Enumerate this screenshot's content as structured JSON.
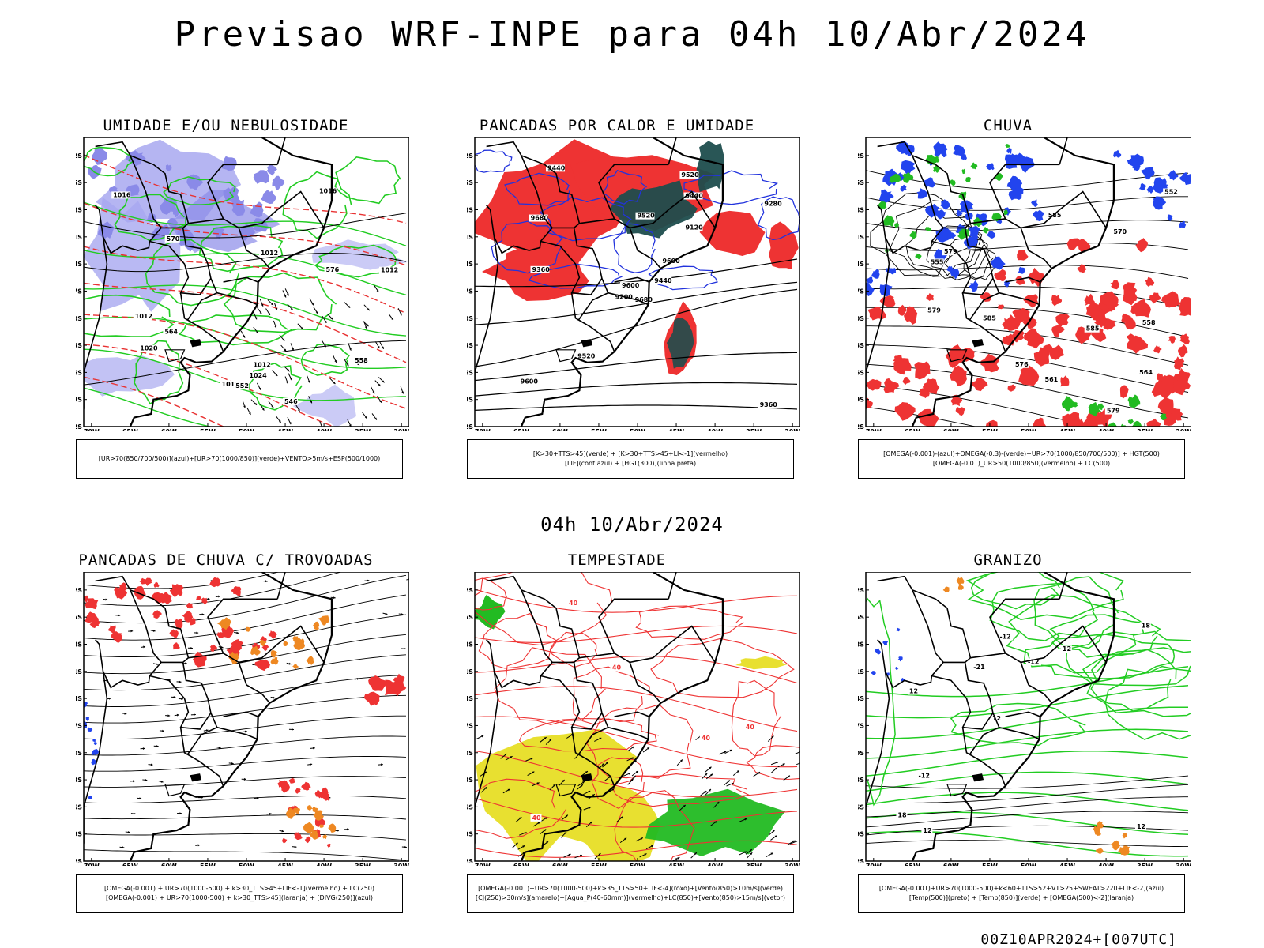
{
  "title": "Previsao WRF-INPE  para 04h 10/Abr/2024",
  "mid_title": "04h 10/Abr/2024",
  "footer": "00Z10APR2024+[007UTC]",
  "lat_labels": [
    "12S",
    "15S",
    "18S",
    "21S",
    "24S",
    "27S",
    "30S",
    "33S",
    "36S",
    "39S",
    "42S"
  ],
  "lon_labels": [
    "70W",
    "65W",
    "60W",
    "55W",
    "50W",
    "45W",
    "40W",
    "35W",
    "30W"
  ],
  "panels": [
    {
      "title": "UMIDADE E/OU NEBULOSIDADE",
      "legend": [
        "[UR>70(850/700/500)](azul)+[UR>70(1000/850)](verde)+VENTO>5m/s+ESP(500/1000)"
      ],
      "contour_labels": [
        "1012",
        "1012",
        "1012",
        "1016",
        "1012",
        "1020",
        "1024",
        "1012",
        "576",
        "570",
        "564",
        "558",
        "552",
        "546",
        "1016"
      ],
      "colors": {
        "fill": "#a8a8f0",
        "fill2": "#8a8ae8",
        "lines": "#22cc22",
        "dashed": "#e83232"
      }
    },
    {
      "title": "PANCADAS POR CALOR E UMIDADE",
      "legend": [
        "[K>30+TTS>45](verde) + [K>30+TTS>45+LI<-1](vermelho)",
        "[LIF](cont.azul) + [HGT(300)](linha preta)"
      ],
      "contour_labels": [
        "9680",
        "9680",
        "9600",
        "9600",
        "9600",
        "9520",
        "9520",
        "9520",
        "9440",
        "9440",
        "9440",
        "9360",
        "9360",
        "9280",
        "9200",
        "9120"
      ],
      "colors": {
        "red": "#ee3333",
        "green": "#1e4d4d",
        "blue": "#2233dd"
      }
    },
    {
      "title": "CHUVA",
      "legend": [
        "[OMEGA(-0.001)-(azul)+OMEGA(-0.3)-(verde)+UR>70(1000/850/700/500)] + HGT(500)",
        "[OMEGA(-0.01)_UR>50(1000/850)(vermelho) + LC(500)"
      ],
      "contour_labels": [
        "585",
        "585",
        "585",
        "579",
        "579",
        "576",
        "570",
        "564",
        "561",
        "558",
        "555",
        "552",
        "579"
      ],
      "colors": {
        "red": "#ee3333",
        "blue": "#2244ee",
        "green": "#22bb22"
      }
    },
    {
      "title": "PANCADAS DE CHUVA C/ TROVOADAS",
      "legend": [
        "[OMEGA(-0.001) + UR>70(1000-500) + k>30_TTS>45+LIF<-1](vermelho) + LC(250)",
        "[OMEGA(-0.001) + UR>70(1000-500) + k>30_TTS>45](laranja) + [DIVG(250)](azul)"
      ],
      "contour_labels": [],
      "colors": {
        "red": "#ee3333",
        "orange": "#ee8822",
        "blue": "#2244ee"
      }
    },
    {
      "title": "TEMPESTADE",
      "legend": [
        "[OMEGA(-0.001)+UR>70(1000-500)+k>35_TTS>50+LIF<-4](roxo)+[Vento(850)>10m/s](verde)",
        "[CJ(250)>30m/s](amarelo)+[Agua_P(40-60mm)](vermelho)+LC(850)+[Vento(850)>15m/s](vetor)"
      ],
      "contour_labels": [
        "40",
        "40",
        "40",
        "40",
        "40"
      ],
      "colors": {
        "yellow": "#e8e030",
        "green": "#22bb22",
        "red": "#ee3333"
      }
    },
    {
      "title": "GRANIZO",
      "legend": [
        "[OMEGA(-0.001)+UR>70(1000-500)+k<60+TTS>52+VT>25+SWEAT>220+LIF<-2](azul)",
        "[Temp(500)](preto) + [Temp(850)](verde) + [OMEGA(500)<-2](laranja)"
      ],
      "contour_labels": [
        "12",
        "12",
        "18",
        "12",
        "12",
        "12",
        "-12",
        "-12",
        "-12",
        "-21",
        "18"
      ],
      "colors": {
        "green": "#22cc22",
        "orange": "#ee8822",
        "blue": "#2244ee"
      }
    }
  ]
}
